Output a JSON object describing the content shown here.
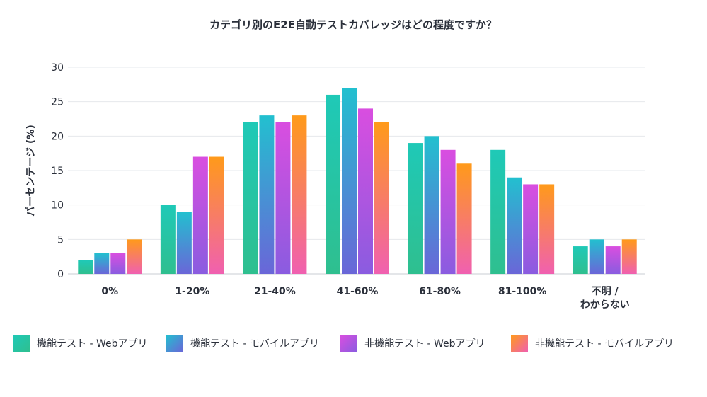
{
  "chart_data": {
    "type": "bar",
    "title": "カテゴリ別のE2E自動テストカバレッジはどの程度ですか？",
    "ylabel": "パーセンテージ (%)",
    "xlabel": "",
    "ylim": [
      0,
      30
    ],
    "yticks": [
      0,
      5,
      10,
      15,
      20,
      25,
      30
    ],
    "grid": true,
    "legend_position": "bottom",
    "categories": [
      [
        "0%"
      ],
      [
        "1-20%"
      ],
      [
        "21-40%"
      ],
      [
        "41-60%"
      ],
      [
        "61-80%"
      ],
      [
        "81-100%"
      ],
      [
        "不明 /",
        "わからない"
      ]
    ],
    "series": [
      {
        "name": "機能テスト - Webアプリ",
        "values": [
          2,
          10,
          22,
          26,
          19,
          18,
          4
        ],
        "color_top": "#1fc9b7",
        "color_bottom": "#2fbf8f"
      },
      {
        "name": "機能テスト - モバイルアプリ",
        "values": [
          3,
          9,
          23,
          27,
          20,
          14,
          5
        ],
        "color_top": "#22c0cf",
        "color_bottom": "#6a66d8"
      },
      {
        "name": "非機能テスト - Webアプリ",
        "values": [
          3,
          17,
          22,
          24,
          18,
          13,
          4
        ],
        "color_top": "#d94ee0",
        "color_bottom": "#8a5ce0"
      },
      {
        "name": "非機能テスト - モバイルアプリ",
        "values": [
          5,
          17,
          23,
          22,
          16,
          13,
          5
        ],
        "color_top": "#ff9a1a",
        "color_bottom": "#f060b0"
      }
    ]
  }
}
